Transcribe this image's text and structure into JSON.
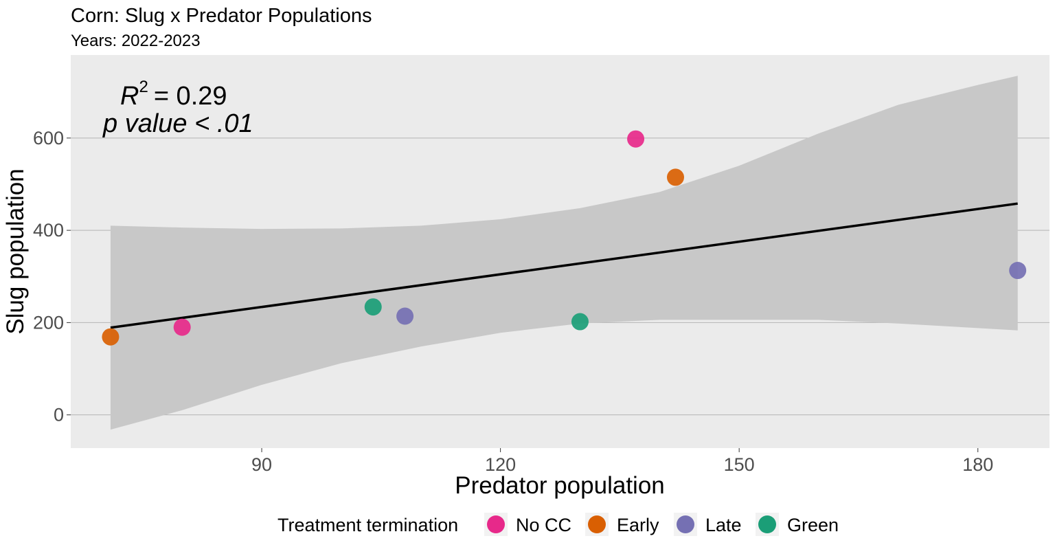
{
  "chart_data": {
    "type": "scatter",
    "title": "Corn: Slug x Predator Populations",
    "subtitle": "Years: 2022-2023",
    "xlabel": "Predator population",
    "ylabel": "Slug population",
    "xlim": [
      66,
      189
    ],
    "ylim": [
      -72,
      780
    ],
    "x_ticks": [
      90,
      120,
      150,
      180
    ],
    "y_ticks": [
      0,
      200,
      400,
      600
    ],
    "grid": "horizontal major lines only",
    "legend": {
      "position": "bottom",
      "title": "Treatment termination",
      "entries": [
        {
          "name": "No CC",
          "color": "#E7298A"
        },
        {
          "name": "Early",
          "color": "#D95F02"
        },
        {
          "name": "Late",
          "color": "#7570B3"
        },
        {
          "name": "Green",
          "color": "#1B9E77"
        }
      ]
    },
    "series": [
      {
        "name": "No CC",
        "color": "#E7298A",
        "points": [
          {
            "x": 80,
            "y": 190
          },
          {
            "x": 137,
            "y": 598
          }
        ]
      },
      {
        "name": "Early",
        "color": "#D95F02",
        "points": [
          {
            "x": 71,
            "y": 169
          },
          {
            "x": 142,
            "y": 515
          }
        ]
      },
      {
        "name": "Late",
        "color": "#7570B3",
        "points": [
          {
            "x": 108,
            "y": 214
          },
          {
            "x": 185,
            "y": 313
          }
        ]
      },
      {
        "name": "Green",
        "color": "#1B9E77",
        "points": [
          {
            "x": 104,
            "y": 234
          },
          {
            "x": 130,
            "y": 202
          }
        ]
      }
    ],
    "regression": {
      "line": {
        "x": [
          71,
          185
        ],
        "y": [
          189,
          458
        ]
      },
      "confidence_band": {
        "x": [
          71,
          80,
          90,
          100,
          110,
          120,
          130,
          140,
          150,
          160,
          170,
          180,
          185
        ],
        "upper": [
          410,
          406,
          403,
          404,
          410,
          424,
          448,
          483,
          540,
          610,
          672,
          715,
          735
        ],
        "lower": [
          -32,
          10,
          65,
          112,
          148,
          178,
          198,
          206,
          206,
          206,
          198,
          188,
          183
        ]
      },
      "line_color": "#000000",
      "band_color": "#C8C8C8"
    },
    "annotation": {
      "r_label": "R",
      "r_superscript": "2",
      "r_value": "= 0.29",
      "p_text": "p value < .01"
    },
    "colors": {
      "panel_background": "#EBEBEB",
      "gridline": "#B4B4B4"
    }
  }
}
